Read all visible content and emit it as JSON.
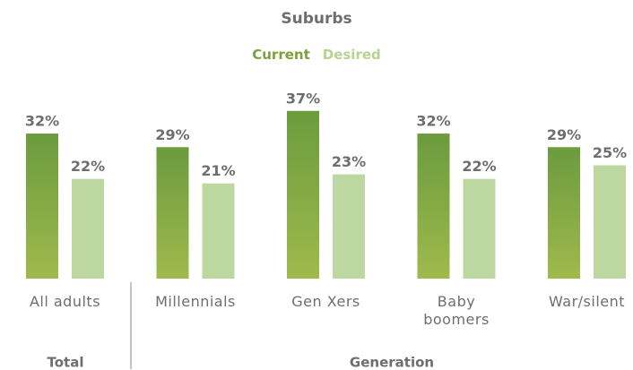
{
  "chart_data": {
    "type": "bar",
    "title": "Suburbs",
    "categories": [
      "All adults",
      "Millennials",
      "Gen Xers",
      "Baby boomers",
      "War/silent"
    ],
    "series": [
      {
        "name": "Current",
        "color": "#6b9b3e",
        "values": [
          32,
          29,
          37,
          32,
          29
        ],
        "value_labels": [
          "32%",
          "29%",
          "37%",
          "32%",
          "29%"
        ]
      },
      {
        "name": "Desired",
        "color": "#bcd8a0",
        "values": [
          22,
          21,
          23,
          22,
          25
        ],
        "value_labels": [
          "22%",
          "21%",
          "23%",
          "22%",
          "25%"
        ]
      }
    ],
    "groups": [
      "Total",
      "Generation"
    ]
  }
}
